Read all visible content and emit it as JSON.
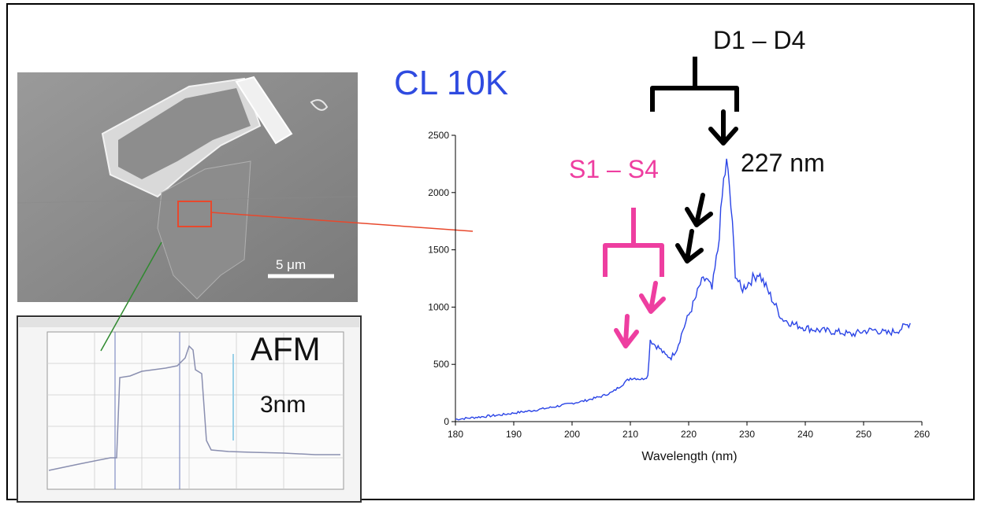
{
  "labels": {
    "cl_title": "CL 10K",
    "d_label": "D1 – D4",
    "s_label": "S1 – S4",
    "peak_label": "227 nm",
    "afm_label": "AFM",
    "afm_value": "3nm",
    "scale_bar": "5 μm"
  },
  "colors": {
    "spectrum": "#2a44e6",
    "pink": "#ee3ea0",
    "red_box": "#e8482c",
    "green_line": "#2f8a2f",
    "title_blue": "#2f4be0"
  },
  "chart_data": {
    "type": "line",
    "xlabel": "Wavelength (nm)",
    "ylabel": "",
    "xlim": [
      180,
      260
    ],
    "ylim": [
      0,
      2500
    ],
    "xticks": [
      180,
      190,
      200,
      210,
      220,
      230,
      240,
      250,
      260
    ],
    "yticks": [
      0,
      500,
      1000,
      1500,
      2000,
      2500
    ],
    "series": [
      {
        "x": [
          180,
          182,
          185,
          188,
          190,
          193,
          196,
          199,
          202,
          205,
          207,
          208,
          209,
          210,
          211,
          212,
          213,
          213.4,
          214,
          215,
          216,
          217,
          218,
          219,
          220,
          221,
          222,
          223,
          224,
          225,
          225.5,
          226,
          226.5,
          227,
          227.5,
          228,
          229,
          230,
          231,
          232,
          233,
          234,
          235,
          236,
          238,
          240,
          242,
          244,
          246,
          248,
          250,
          252,
          254,
          256,
          258
        ],
        "y": [
          20,
          30,
          45,
          60,
          75,
          95,
          120,
          150,
          180,
          220,
          260,
          300,
          340,
          380,
          380,
          370,
          400,
          720,
          680,
          640,
          580,
          560,
          640,
          800,
          930,
          1050,
          1200,
          1250,
          1150,
          1500,
          1800,
          2100,
          2250,
          2050,
          1700,
          1300,
          1150,
          1200,
          1250,
          1300,
          1200,
          1100,
          1000,
          900,
          850,
          820,
          800,
          790,
          780,
          760,
          790,
          800,
          770,
          800,
          860
        ]
      }
    ]
  }
}
